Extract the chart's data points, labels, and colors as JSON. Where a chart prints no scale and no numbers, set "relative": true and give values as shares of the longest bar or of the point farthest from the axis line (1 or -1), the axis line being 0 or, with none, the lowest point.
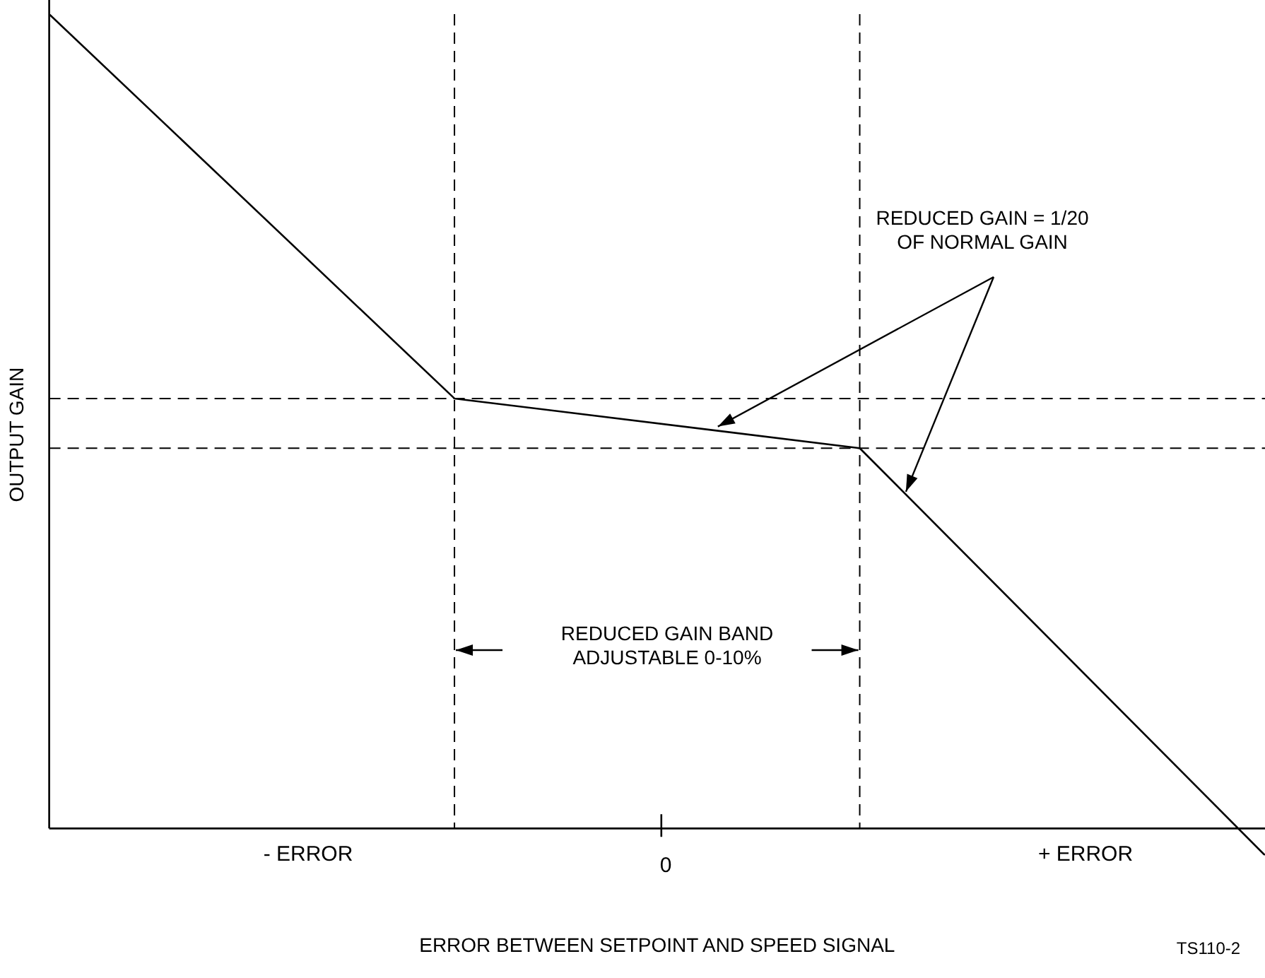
{
  "chart_data": {
    "type": "line",
    "relative": true,
    "categories": [
      null,
      null,
      null,
      null
    ],
    "series": [
      {
        "color": "#000000",
        "values": [
          1,
          0.528,
          0.467,
          -0.033
        ]
      }
    ],
    "xlabel": "ERROR BETWEEN SETPOINT AND SPEED SIGNAL",
    "ylabel": "OUTPUT GAIN",
    "ref_lines": [
      {
        "axis": "y",
        "value": 0.528,
        "line_style": "dashed"
      },
      {
        "axis": "y",
        "value": 0.467,
        "line_style": "dashed"
      }
    ],
    "annotations": [
      "REDUCED GAIN = 1/20\nOF NORMAL GAIN",
      "REDUCED GAIN BAND\nADJUSTABLE 0-10%",
      "TS110-2",
      "- ERROR",
      "0",
      "+ ERROR"
    ],
    "grid": false,
    "legend": false,
    "tick_labels": false,
    "marker": "none",
    "line_style": "solid"
  }
}
